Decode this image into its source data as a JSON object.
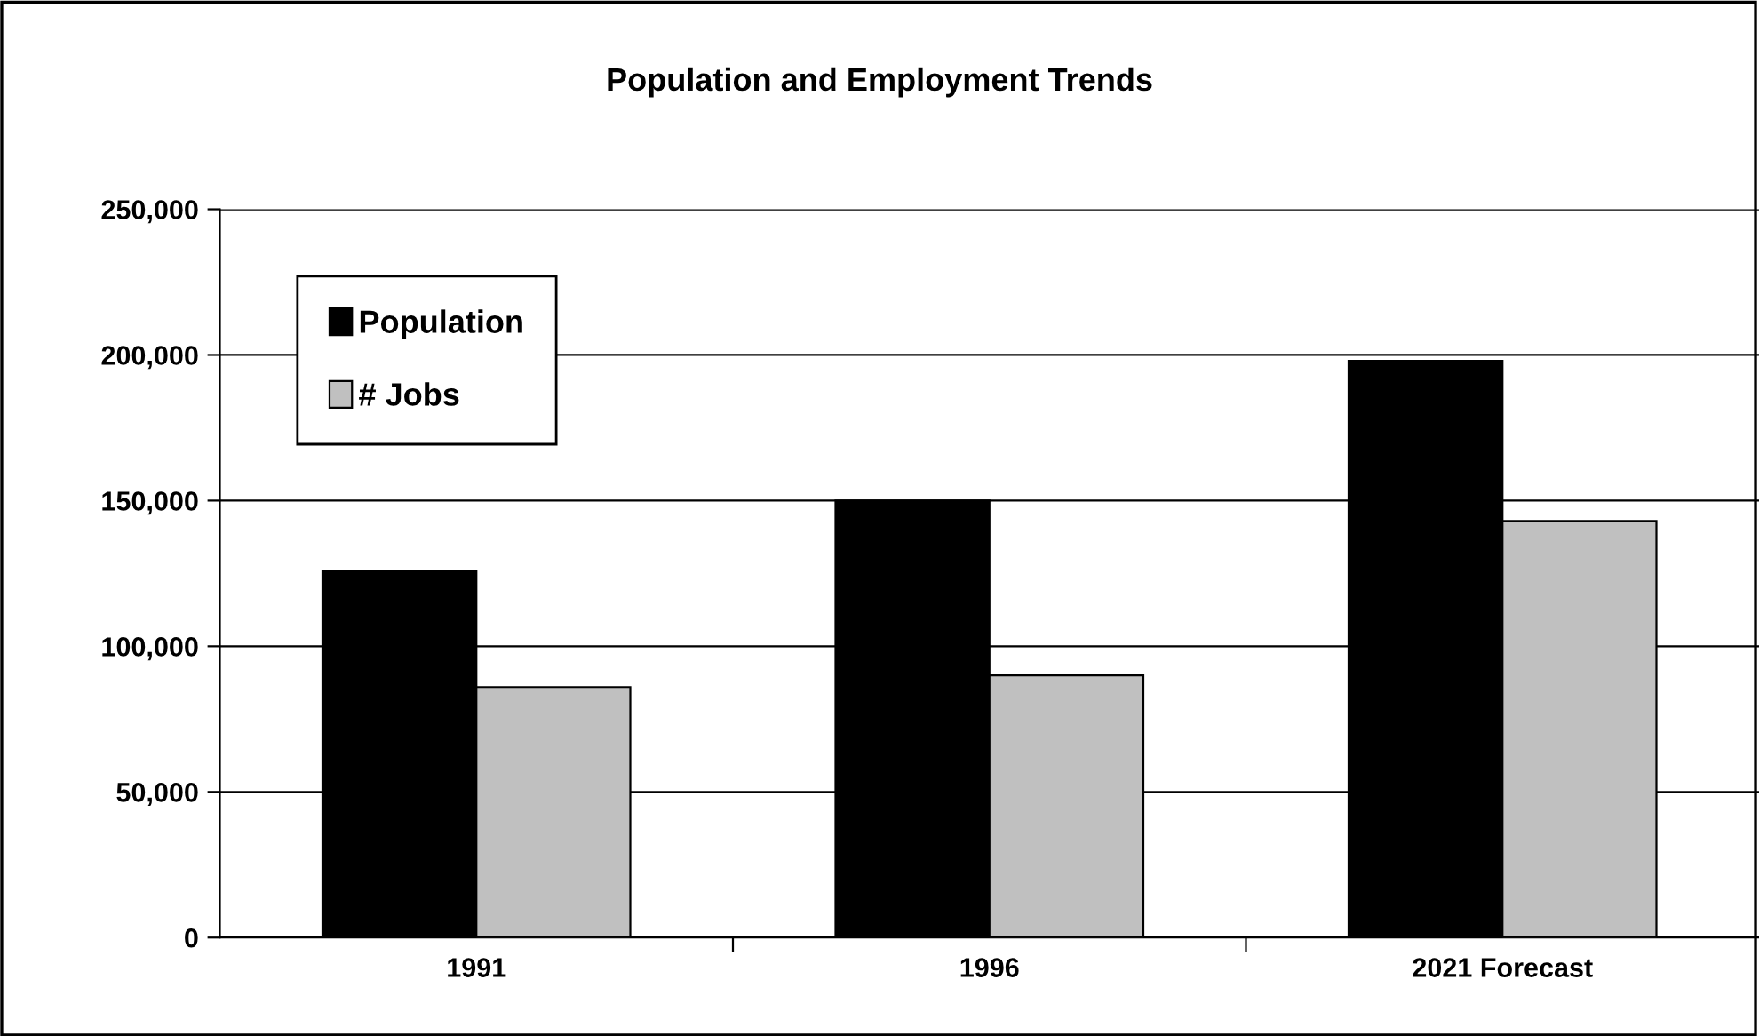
{
  "chart_data": {
    "type": "bar",
    "title": "Population and Employment Trends",
    "categories": [
      "1991",
      "1996",
      "2021 Forecast"
    ],
    "series": [
      {
        "name": "Population",
        "color": "#000000",
        "values": [
          126000,
          150000,
          198000
        ]
      },
      {
        "name": "# Jobs",
        "color": "#c0c0c0",
        "values": [
          86000,
          90000,
          143000
        ]
      }
    ],
    "ylim": [
      0,
      250000
    ],
    "yticks": [
      {
        "value": 0,
        "label": "0"
      },
      {
        "value": 50000,
        "label": "50,000"
      },
      {
        "value": 100000,
        "label": "100,000"
      },
      {
        "value": 150000,
        "label": "150,000"
      },
      {
        "value": 200000,
        "label": "200,000"
      },
      {
        "value": 250000,
        "label": "250,000"
      }
    ],
    "grid": "y",
    "legend": "top left"
  }
}
